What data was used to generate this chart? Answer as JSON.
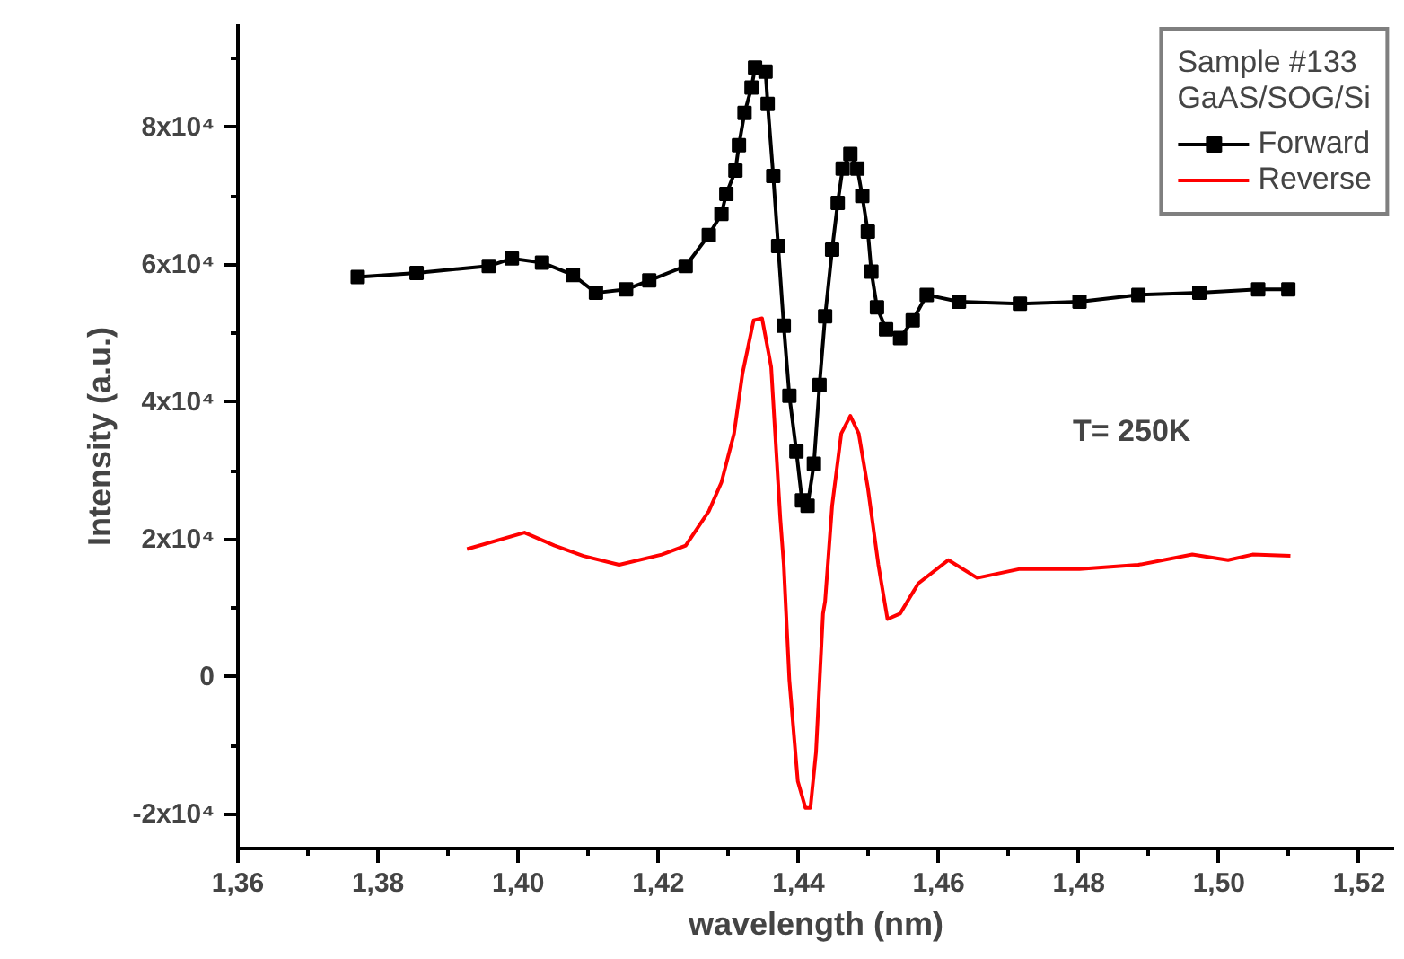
{
  "chart_data": {
    "type": "line",
    "xlabel": "wavelength (nm)",
    "ylabel": "Intensity (a.u.)",
    "legend_title": "Sample #133\nGaAS/SOG/Si",
    "annotations": [
      "T= 250K"
    ],
    "xlim": [
      1.36,
      1.525
    ],
    "xticks": [
      {
        "value": 1.36,
        "label": "1,36"
      },
      {
        "value": 1.38,
        "label": "1,38"
      },
      {
        "value": 1.4,
        "label": "1,40"
      },
      {
        "value": 1.42,
        "label": "1,42"
      },
      {
        "value": 1.44,
        "label": "1,44"
      },
      {
        "value": 1.46,
        "label": "1,46"
      },
      {
        "value": 1.48,
        "label": "1,48"
      },
      {
        "value": 1.5,
        "label": "1,50"
      },
      {
        "value": 1.52,
        "label": "1,52"
      }
    ],
    "ylim": [
      -25000,
      95000
    ],
    "yticks": [
      {
        "value": -20000,
        "label": "-2x10⁴"
      },
      0,
      {
        "value": 20000,
        "label": "2x10⁴"
      },
      {
        "value": 40000,
        "label": "4x10⁴"
      },
      {
        "value": 60000,
        "label": "6x10⁴"
      },
      {
        "value": 80000,
        "label": "8x10⁴"
      }
    ],
    "grid": false,
    "legend": "top right",
    "line_style": "solid",
    "series": [
      {
        "name": "Forward",
        "color": "#000000",
        "marker": "square",
        "x": [
          1.3771,
          1.3855,
          1.3958,
          1.3991,
          1.4034,
          1.4078,
          1.4111,
          1.4154,
          1.4187,
          1.4239,
          1.4272,
          1.429,
          1.4297,
          1.431,
          1.4315,
          1.4323,
          1.4333,
          1.4338,
          1.4353,
          1.4356,
          1.4364,
          1.4371,
          1.4379,
          1.4387,
          1.4397,
          1.4405,
          1.4413,
          1.4422,
          1.443,
          1.4438,
          1.4448,
          1.4456,
          1.4463,
          1.4474,
          1.4484,
          1.4491,
          1.4499,
          1.4504,
          1.4512,
          1.4525,
          1.4545,
          1.4563,
          1.4583,
          1.4629,
          1.4716,
          1.4801,
          1.4885,
          1.4972,
          1.5056,
          1.5099
        ],
        "values": [
          58200,
          58800,
          59800,
          60900,
          60300,
          58500,
          55900,
          56400,
          57700,
          59800,
          64300,
          67400,
          70300,
          73700,
          77400,
          82100,
          85800,
          88700,
          88100,
          83400,
          72900,
          62700,
          51100,
          40900,
          32800,
          25700,
          24900,
          31000,
          42500,
          52500,
          62200,
          69000,
          74000,
          76100,
          74000,
          70000,
          64800,
          59000,
          53800,
          50600,
          49300,
          51900,
          55600,
          54600,
          54300,
          54600,
          55600,
          55900,
          56400,
          56400
        ]
      },
      {
        "name": "Reverse",
        "color": "#ff0000",
        "marker": "none",
        "x": [
          1.3927,
          1.4009,
          1.4052,
          1.4093,
          1.4144,
          1.4205,
          1.4239,
          1.4272,
          1.429,
          1.4308,
          1.432,
          1.4336,
          1.4348,
          1.4361,
          1.4374,
          1.4379,
          1.4387,
          1.4399,
          1.441,
          1.4417,
          1.4425,
          1.4435,
          1.4438,
          1.4448,
          1.4461,
          1.4474,
          1.4486,
          1.4499,
          1.4514,
          1.4527,
          1.4545,
          1.4571,
          1.4614,
          1.4655,
          1.4716,
          1.4801,
          1.4885,
          1.4962,
          1.5013,
          1.5048,
          1.5102
        ],
        "values": [
          18600,
          21000,
          19100,
          17600,
          16300,
          17800,
          19100,
          24100,
          28300,
          35400,
          44100,
          51900,
          52200,
          45100,
          23100,
          16300,
          -500,
          -15200,
          -19100,
          -19100,
          -11000,
          9200,
          11000,
          24900,
          35400,
          38000,
          35400,
          27500,
          16300,
          8400,
          9200,
          13600,
          17000,
          14400,
          15700,
          15700,
          16300,
          17800,
          17000,
          17800,
          17600
        ]
      }
    ]
  }
}
